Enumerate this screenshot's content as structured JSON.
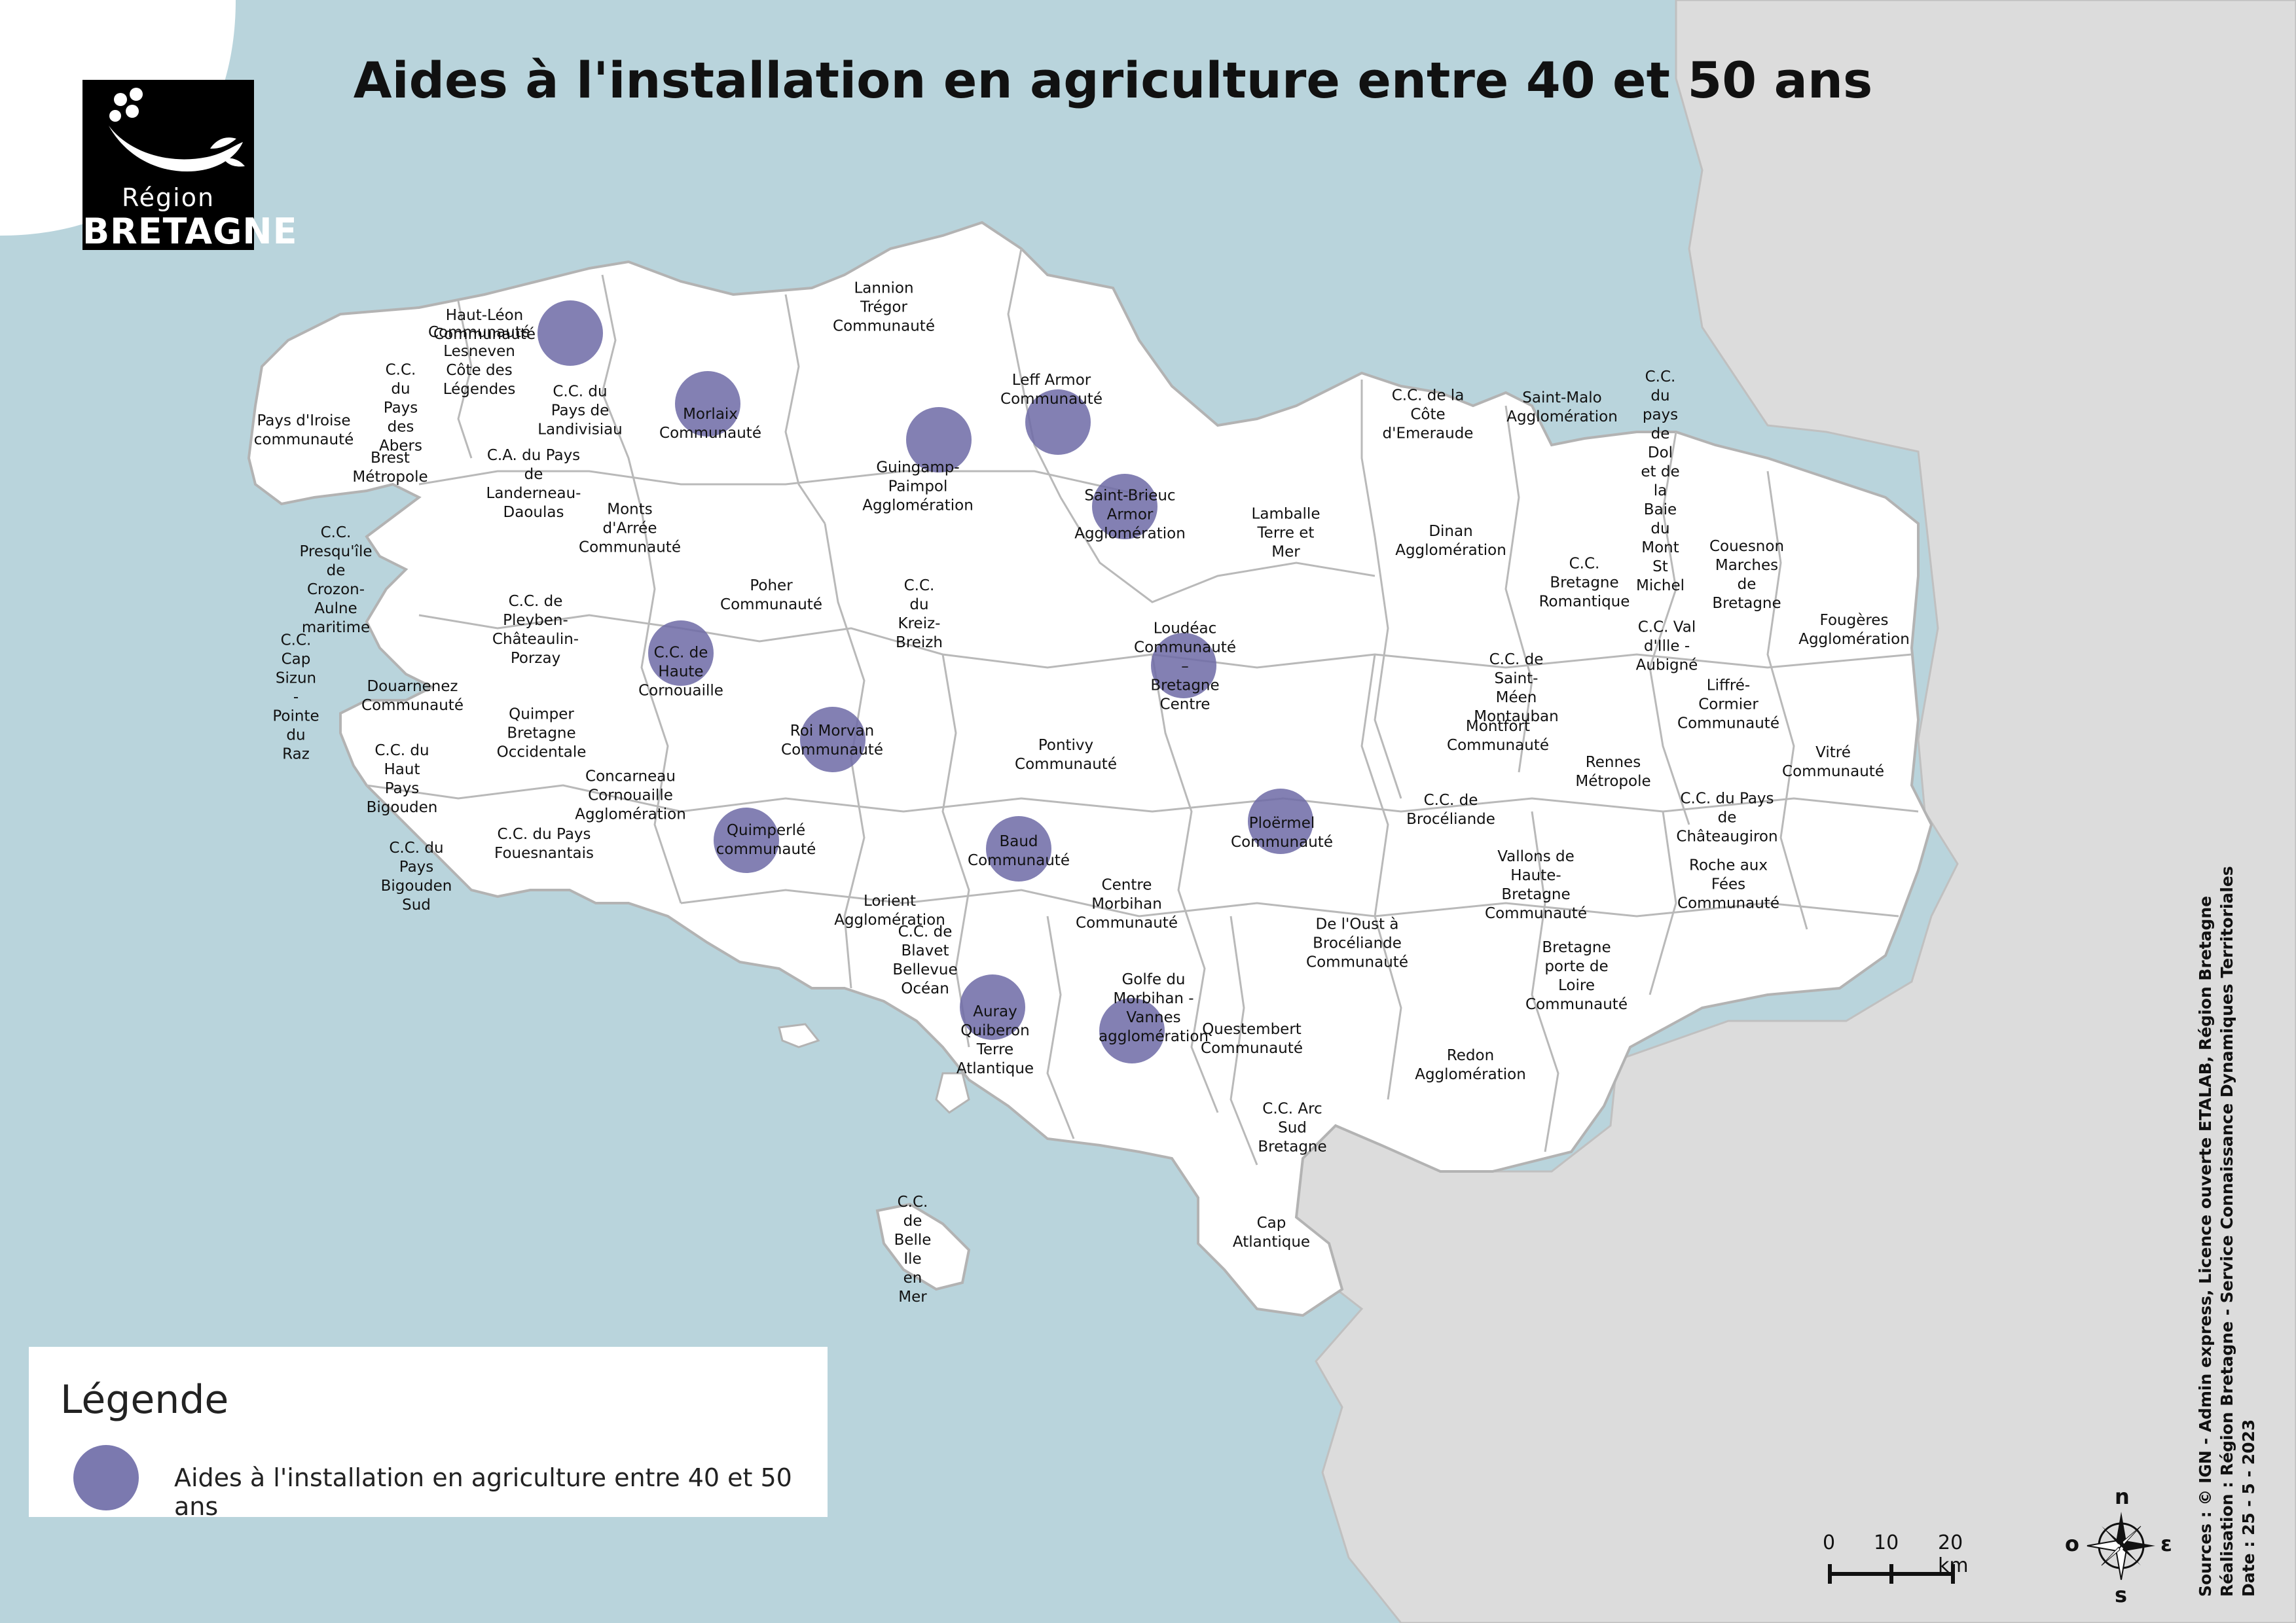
{
  "title": "Aides à l'installation en agriculture entre 40 et 50 ans",
  "logo": {
    "line1": "Région",
    "line2": "BRETAGNE"
  },
  "colors": {
    "sea": "#b9d4dc",
    "land": "#ffffff",
    "other_land": "#dcdcdc",
    "marker": "#6d6aa6",
    "boundary": "#b3b3b3"
  },
  "territories": [
    {
      "label": "Lannion Trégor\nCommunauté"
    },
    {
      "label": "Haut-Léon Communauté"
    },
    {
      "label": "Communauté Lesneven\nCôte des Légendes"
    },
    {
      "label": "C.C. du Pays des\nAbers"
    },
    {
      "label": "Pays d'Iroise\ncommunauté"
    },
    {
      "label": "C.C. du Pays de\nLandivisiau"
    },
    {
      "label": "Morlaix Communauté"
    },
    {
      "label": "Leff Armor\nCommunauté"
    },
    {
      "label": "Brest Métropole"
    },
    {
      "label": "C.A. du Pays de\nLanderneau-Daoulas"
    },
    {
      "label": "Guingamp-Paimpol\nAgglomération"
    },
    {
      "label": "Saint-Brieuc Armor\nAgglomération"
    },
    {
      "label": "Monts d'Arrée\nCommunauté"
    },
    {
      "label": "C.C. Presqu'île de\nCrozon-Aulne\nmaritime"
    },
    {
      "label": "Poher Communauté"
    },
    {
      "label": "C.C. du Kreiz-Breizh"
    },
    {
      "label": "C.C. de\nPleyben-Châteaulin-Porzay"
    },
    {
      "label": "C.C. de Haute\nCornouaille"
    },
    {
      "label": "Lamballe Terre et\nMer"
    },
    {
      "label": "Dinan Agglomération"
    },
    {
      "label": "C.C. de la Côte\nd'Emeraude"
    },
    {
      "label": "Saint-Malo\nAgglomération"
    },
    {
      "label": "C.C. du pays de Dol\net de la Baie du\nMont St Michel"
    },
    {
      "label": "C.C. Bretagne\nRomantique"
    },
    {
      "label": "Couesnon Marches de\nBretagne"
    },
    {
      "label": "Fougères\nAgglomération"
    },
    {
      "label": "C.C. Val d'Ille -\nAubigné"
    },
    {
      "label": "Liffré-Cormier\nCommunauté"
    },
    {
      "label": "Loudéac Communauté –\nBretagne Centre"
    },
    {
      "label": "C.C. de Saint-Méen\nMontauban"
    },
    {
      "label": "Montfort Communauté"
    },
    {
      "label": "Rennes Métropole"
    },
    {
      "label": "Vitré Communauté"
    },
    {
      "label": "C.C. Cap Sizun -\nPointe du Raz"
    },
    {
      "label": "Douarnenez\nCommunauté"
    },
    {
      "label": "Quimper Bretagne\nOccidentale"
    },
    {
      "label": "Roi Morvan\nCommunauté"
    },
    {
      "label": "Pontivy Communauté"
    },
    {
      "label": "C.C. du Haut Pays\nBigouden"
    },
    {
      "label": "Concarneau\nCornouaille\nAgglomération"
    },
    {
      "label": "C.C. du Pays\nFouesnantais"
    },
    {
      "label": "Quimperlé communauté"
    },
    {
      "label": "Baud Communauté"
    },
    {
      "label": "Ploërmel Communauté"
    },
    {
      "label": "C.C. de Brocéliande"
    },
    {
      "label": "C.C. du Pays de\nChâteaugiron"
    },
    {
      "label": "C.C. du Pays\nBigouden Sud"
    },
    {
      "label": "Lorient\nAgglomération"
    },
    {
      "label": "Centre Morbihan\nCommunauté"
    },
    {
      "label": "Vallons de\nHaute-Bretagne\nCommunauté"
    },
    {
      "label": "Roche aux Fées\nCommunauté"
    },
    {
      "label": "De l'Oust à\nBrocéliande\nCommunauté"
    },
    {
      "label": "C.C. de Blavet\nBellevue Océan"
    },
    {
      "label": "Bretagne porte de\nLoire Communauté"
    },
    {
      "label": "Golfe du Morbihan -\nVannes agglomération"
    },
    {
      "label": "Auray Quiberon Terre\nAtlantique"
    },
    {
      "label": "Questembert\nCommunauté"
    },
    {
      "label": "Redon Agglomération"
    },
    {
      "label": "C.C. Arc Sud\nBretagne"
    },
    {
      "label": "C.C. de Belle Ile en\nMer"
    },
    {
      "label": "Cap Atlantique"
    }
  ],
  "markers": [
    {
      "territory": "Haut-Léon Communauté"
    },
    {
      "territory": "Morlaix Communauté"
    },
    {
      "territory": "Guingamp-Paimpol Agglomération"
    },
    {
      "territory": "Leff Armor Communauté"
    },
    {
      "territory": "Saint-Brieuc Armor Agglomération"
    },
    {
      "territory": "C.C. de Haute Cornouaille"
    },
    {
      "territory": "Loudéac Communauté – Bretagne Centre"
    },
    {
      "territory": "Roi Morvan Communauté"
    },
    {
      "territory": "Quimperlé communauté"
    },
    {
      "territory": "Baud Communauté"
    },
    {
      "territory": "Ploërmel Communauté"
    },
    {
      "territory": "Auray Quiberon Terre Atlantique"
    },
    {
      "territory": "Golfe du Morbihan - Vannes agglomération"
    }
  ],
  "legend": {
    "title": "Légende",
    "item": "Aides à l'installation en agriculture entre 40 et 50 ans"
  },
  "scale": {
    "t0": "0",
    "t1": "10",
    "t2": "20 km"
  },
  "compass": {
    "n": "n",
    "e": "ε",
    "s": "s",
    "o": "o"
  },
  "credits": {
    "line1": "Sources : © IGN - Admin express, Licence ouverte ETALAB, Région Bretagne",
    "line2": "Réalisation : Région Bretagne - Service Connaissance Dynamiques Territoriales",
    "line3": "Date : 25 - 5 - 2023"
  }
}
